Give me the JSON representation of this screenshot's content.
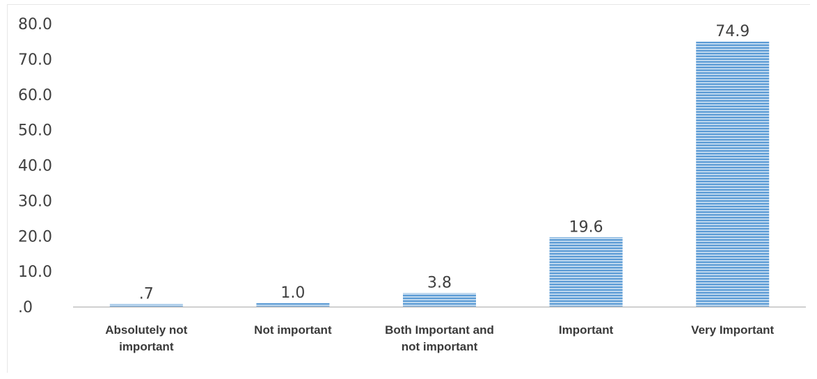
{
  "colors": {
    "bar_fill": "#bdd7ee",
    "bar_stripe": "#5b9bd5",
    "axis": "#bfbfbf",
    "text": "#404040"
  },
  "chart_data": {
    "type": "bar",
    "title": "",
    "xlabel": "",
    "ylabel": "",
    "ylim": [
      0,
      80
    ],
    "yticks": [
      ".0",
      "10.0",
      "20.0",
      "30.0",
      "40.0",
      "50.0",
      "60.0",
      "70.0",
      "80.0"
    ],
    "grid": false,
    "legend": "none",
    "categories": [
      [
        "Absolutely not",
        "important"
      ],
      [
        "Not important"
      ],
      [
        "Both Important and",
        "not important"
      ],
      [
        "Important"
      ],
      [
        "Very Important"
      ]
    ],
    "values": [
      0.7,
      1.0,
      3.8,
      19.6,
      74.9
    ],
    "value_labels": [
      ".7",
      "1.0",
      "3.8",
      "19.6",
      "74.9"
    ]
  }
}
